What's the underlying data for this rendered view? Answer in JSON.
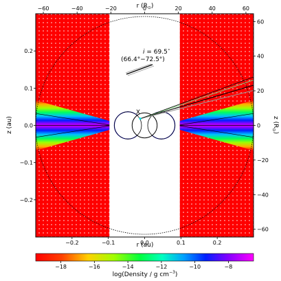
{
  "chart_data": {
    "type": "heatmap",
    "title": "",
    "xlabel": "r (au)",
    "ylabel": "z (au)",
    "x_top_label": "r (R",
    "y_right_label": "z (R",
    "xlim": [
      -0.3,
      0.3
    ],
    "ylim": [
      -0.3,
      0.3
    ],
    "x_ticks": [
      -0.2,
      -0.1,
      0.0,
      0.1,
      0.2
    ],
    "x_tick_labels": [
      "−0.2",
      "−0.1",
      "0.0",
      "0.1",
      "0.2"
    ],
    "y_ticks": [
      -0.2,
      -0.1,
      0.0,
      0.1,
      0.2
    ],
    "y_tick_labels": [
      "−0.2",
      "−0.1",
      "0.0",
      "0.1",
      "0.2"
    ],
    "x_top_ticks": [
      -60,
      -40,
      -20,
      0,
      20,
      40,
      60
    ],
    "x_top_tick_labels": [
      "−60",
      "−40",
      "−20",
      "0",
      "20",
      "40",
      "60"
    ],
    "y_right_ticks": [
      -60,
      -40,
      -20,
      0,
      20,
      40,
      60
    ],
    "y_right_tick_labels": [
      "−60",
      "−40",
      "−20",
      "0",
      "20",
      "40",
      "60"
    ],
    "colorbar": {
      "label": "log(Density / g cm",
      "label_sup": "−3",
      "label_end": ")",
      "range": [
        -19.5,
        -6.5
      ],
      "ticks": [
        -18,
        -16,
        -14,
        -12,
        -10,
        -8
      ],
      "tick_labels": [
        "−18",
        "−16",
        "−14",
        "−12",
        "−10",
        "−8"
      ],
      "colormap": "gist_rainbow_r"
    },
    "regions": {
      "background_log_density": -19,
      "cleared_cavity_r_au": 0.097,
      "disk_opening_half_angle_deg_at_edge": 20,
      "disk_midplane_log_density": -7,
      "outer_circle_radius_au": 0.3
    },
    "annotations": {
      "inclination_main": "i = 69.5",
      "inclination_range": "(66.4°−72.5°)",
      "inclination_deg": 69.5,
      "inclination_range_deg": [
        66.4,
        72.5
      ],
      "marker": "X"
    },
    "grid": false
  },
  "colors": {
    "background_red": "#ff0000",
    "cavity": "#ffffff",
    "stars_outline": "#000000",
    "accent_line_green": "#7fd07f",
    "accent_line_gray": "#999999"
  }
}
